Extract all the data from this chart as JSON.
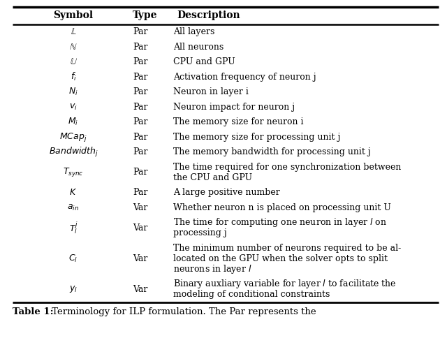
{
  "title_bold": "Table 1:",
  "title_rest": " Terminology for ILP formulation. The Par represents the",
  "headers": [
    "Symbol",
    "Type",
    "Description"
  ],
  "rows": [
    {
      "symbol": "$\\mathbb{L}$",
      "type": "Par",
      "desc": [
        "All layers"
      ],
      "nlines": 1
    },
    {
      "symbol": "$\\mathbb{N}$",
      "type": "Par",
      "desc": [
        "All neurons"
      ],
      "nlines": 1
    },
    {
      "symbol": "$\\mathbb{U}$",
      "type": "Par",
      "desc": [
        "CPU and GPU"
      ],
      "nlines": 1
    },
    {
      "symbol": "$f_i$",
      "type": "Par",
      "desc": [
        "Activation frequency of neuron j"
      ],
      "nlines": 1
    },
    {
      "symbol": "$N_i$",
      "type": "Par",
      "desc": [
        "Neuron in layer i"
      ],
      "nlines": 1
    },
    {
      "symbol": "$v_i$",
      "type": "Par",
      "desc": [
        "Neuron impact for neuron j"
      ],
      "nlines": 1
    },
    {
      "symbol": "$M_i$",
      "type": "Par",
      "desc": [
        "The memory size for neuron i"
      ],
      "nlines": 1
    },
    {
      "symbol": "$\\mathit{MCap}_j$",
      "type": "Par",
      "desc": [
        "The memory size for processing unit j"
      ],
      "nlines": 1
    },
    {
      "symbol": "$\\mathit{Bandwidth}_j$",
      "type": "Par",
      "desc": [
        "The memory bandwidth for processing unit j"
      ],
      "nlines": 1
    },
    {
      "symbol": "$T_{sync}$",
      "type": "Par",
      "desc": [
        "The time required for one synchronization between",
        "the CPU and GPU"
      ],
      "nlines": 2
    },
    {
      "symbol": "$K$",
      "type": "Par",
      "desc": [
        "A large positive number"
      ],
      "nlines": 1
    },
    {
      "symbol": "$a_{in}$",
      "type": "Var",
      "desc": [
        "Whether neuron n is placed on processing unit U"
      ],
      "nlines": 1
    },
    {
      "symbol": "$T_l^j$",
      "type": "Var",
      "desc": [
        "The time for computing one neuron in layer $l$ on",
        "processing j"
      ],
      "nlines": 2
    },
    {
      "symbol": "$C_l$",
      "type": "Var",
      "desc": [
        "The minimum number of neurons required to be al-",
        "located on the GPU when the solver opts to split",
        "neurons in layer $l$"
      ],
      "nlines": 3
    },
    {
      "symbol": "$y_l$",
      "type": "Var",
      "desc": [
        "Binary auxliary variable for layer $l$ to facilitate the",
        "modeling of conditional constraints"
      ],
      "nlines": 2
    }
  ],
  "bg_color": "#ffffff",
  "line_color": "#000000",
  "text_color": "#000000",
  "font_size": 9.0,
  "header_font_size": 10.0
}
